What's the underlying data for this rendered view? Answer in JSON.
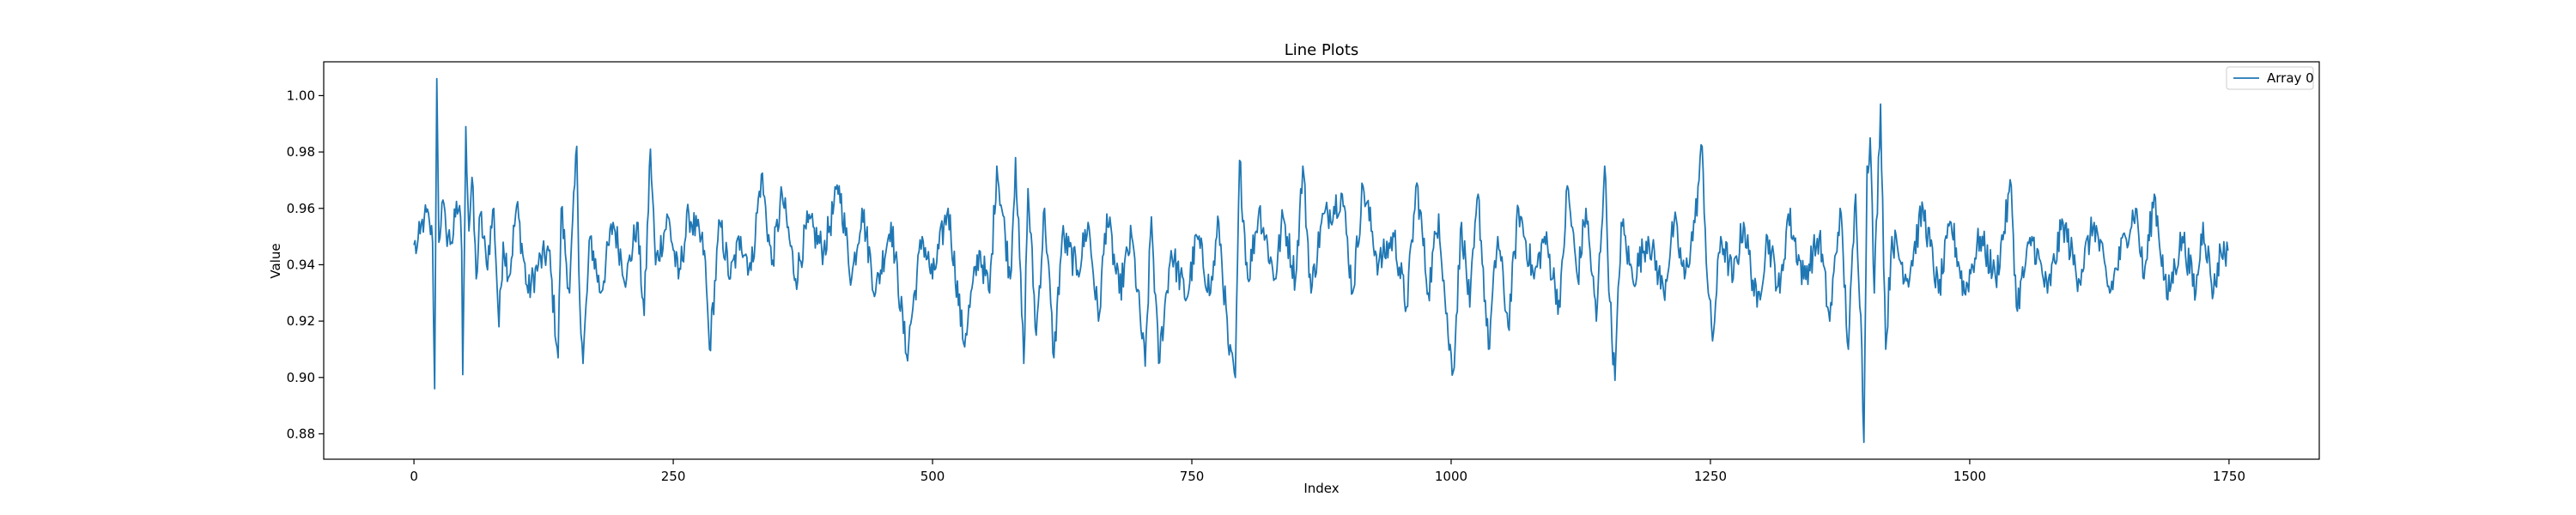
{
  "chart_data": {
    "type": "line",
    "title": "Line Plots",
    "xlabel": "Index",
    "ylabel": "Value",
    "xlim": [
      -87,
      1837
    ],
    "ylim": [
      0.871,
      1.012
    ],
    "xticks": [
      0,
      250,
      500,
      750,
      1000,
      1250,
      1500,
      1750
    ],
    "yticks": [
      0.88,
      0.9,
      0.92,
      0.94,
      0.96,
      0.98,
      1.0
    ],
    "grid": false,
    "legend_position": "top-right",
    "series": [
      {
        "name": "Array 0",
        "color": "#1f77b4",
        "n_points": 1750,
        "anchors": [
          [
            0,
            0.947
          ],
          [
            3,
            0.946
          ],
          [
            6,
            0.951
          ],
          [
            10,
            0.957
          ],
          [
            15,
            0.955
          ],
          [
            18,
            0.948
          ],
          [
            20,
            0.896
          ],
          [
            21,
            0.955
          ],
          [
            22,
            1.006
          ],
          [
            24,
            0.948
          ],
          [
            27,
            0.962
          ],
          [
            31,
            0.952
          ],
          [
            36,
            0.948
          ],
          [
            40,
            0.957
          ],
          [
            44,
            0.961
          ],
          [
            46,
            0.945
          ],
          [
            47,
            0.901
          ],
          [
            48,
            0.929
          ],
          [
            50,
            0.989
          ],
          [
            53,
            0.952
          ],
          [
            56,
            0.971
          ],
          [
            60,
            0.935
          ],
          [
            64,
            0.958
          ],
          [
            70,
            0.94
          ],
          [
            77,
            0.96
          ],
          [
            82,
            0.918
          ],
          [
            86,
            0.948
          ],
          [
            92,
            0.936
          ],
          [
            99,
            0.961
          ],
          [
            110,
            0.93
          ],
          [
            120,
            0.94
          ],
          [
            130,
            0.945
          ],
          [
            139,
            0.907
          ],
          [
            142,
            0.96
          ],
          [
            150,
            0.93
          ],
          [
            157,
            0.982
          ],
          [
            160,
            0.925
          ],
          [
            163,
            0.905
          ],
          [
            170,
            0.95
          ],
          [
            180,
            0.93
          ],
          [
            192,
            0.955
          ],
          [
            205,
            0.935
          ],
          [
            215,
            0.955
          ],
          [
            222,
            0.922
          ],
          [
            228,
            0.981
          ],
          [
            233,
            0.94
          ],
          [
            245,
            0.957
          ],
          [
            255,
            0.935
          ],
          [
            265,
            0.958
          ],
          [
            280,
            0.945
          ],
          [
            285,
            0.91
          ],
          [
            295,
            0.955
          ],
          [
            305,
            0.935
          ],
          [
            315,
            0.95
          ],
          [
            325,
            0.938
          ],
          [
            335,
            0.972
          ],
          [
            345,
            0.94
          ],
          [
            355,
            0.965
          ],
          [
            368,
            0.935
          ],
          [
            380,
            0.955
          ],
          [
            395,
            0.945
          ],
          [
            410,
            0.968
          ],
          [
            422,
            0.935
          ],
          [
            432,
            0.96
          ],
          [
            445,
            0.93
          ],
          [
            460,
            0.955
          ],
          [
            475,
            0.908
          ],
          [
            490,
            0.95
          ],
          [
            500,
            0.935
          ],
          [
            515,
            0.96
          ],
          [
            530,
            0.912
          ],
          [
            545,
            0.945
          ],
          [
            555,
            0.93
          ],
          [
            562,
            0.975
          ],
          [
            575,
            0.935
          ],
          [
            580,
            0.978
          ],
          [
            588,
            0.905
          ],
          [
            592,
            0.967
          ],
          [
            600,
            0.915
          ],
          [
            608,
            0.96
          ],
          [
            617,
            0.907
          ],
          [
            625,
            0.95
          ],
          [
            640,
            0.938
          ],
          [
            650,
            0.955
          ],
          [
            660,
            0.92
          ],
          [
            668,
            0.958
          ],
          [
            680,
            0.93
          ],
          [
            692,
            0.95
          ],
          [
            705,
            0.904
          ],
          [
            711,
            0.957
          ],
          [
            718,
            0.905
          ],
          [
            730,
            0.945
          ],
          [
            745,
            0.928
          ],
          [
            755,
            0.95
          ],
          [
            768,
            0.93
          ],
          [
            776,
            0.955
          ],
          [
            786,
            0.908
          ],
          [
            792,
            0.9
          ],
          [
            796,
            0.977
          ],
          [
            804,
            0.935
          ],
          [
            815,
            0.96
          ],
          [
            830,
            0.935
          ],
          [
            838,
            0.957
          ],
          [
            850,
            0.935
          ],
          [
            857,
            0.975
          ],
          [
            865,
            0.93
          ],
          [
            875,
            0.955
          ],
          [
            895,
            0.965
          ],
          [
            905,
            0.93
          ],
          [
            915,
            0.968
          ],
          [
            930,
            0.94
          ],
          [
            945,
            0.95
          ],
          [
            957,
            0.925
          ],
          [
            967,
            0.969
          ],
          [
            978,
            0.93
          ],
          [
            988,
            0.958
          ],
          [
            997,
            0.915
          ],
          [
            1002,
            0.902
          ],
          [
            1010,
            0.955
          ],
          [
            1018,
            0.925
          ],
          [
            1026,
            0.965
          ],
          [
            1036,
            0.91
          ],
          [
            1045,
            0.95
          ],
          [
            1055,
            0.918
          ],
          [
            1065,
            0.96
          ],
          [
            1080,
            0.935
          ],
          [
            1090,
            0.95
          ],
          [
            1105,
            0.925
          ],
          [
            1112,
            0.968
          ],
          [
            1122,
            0.935
          ],
          [
            1130,
            0.96
          ],
          [
            1140,
            0.92
          ],
          [
            1148,
            0.975
          ],
          [
            1153,
            0.927
          ],
          [
            1158,
            0.899
          ],
          [
            1164,
            0.955
          ],
          [
            1175,
            0.935
          ],
          [
            1190,
            0.95
          ],
          [
            1205,
            0.93
          ],
          [
            1215,
            0.955
          ],
          [
            1225,
            0.935
          ],
          [
            1235,
            0.955
          ],
          [
            1242,
            0.982
          ],
          [
            1247,
            0.935
          ],
          [
            1252,
            0.913
          ],
          [
            1260,
            0.95
          ],
          [
            1272,
            0.935
          ],
          [
            1282,
            0.955
          ],
          [
            1295,
            0.925
          ],
          [
            1305,
            0.95
          ],
          [
            1317,
            0.93
          ],
          [
            1325,
            0.958
          ],
          [
            1340,
            0.935
          ],
          [
            1355,
            0.95
          ],
          [
            1365,
            0.92
          ],
          [
            1375,
            0.96
          ],
          [
            1383,
            0.91
          ],
          [
            1390,
            0.965
          ],
          [
            1395,
            0.922
          ],
          [
            1398,
            0.877
          ],
          [
            1401,
            0.975
          ],
          [
            1404,
            0.985
          ],
          [
            1408,
            0.93
          ],
          [
            1414,
            0.997
          ],
          [
            1419,
            0.91
          ],
          [
            1425,
            0.95
          ],
          [
            1440,
            0.935
          ],
          [
            1455,
            0.96
          ],
          [
            1470,
            0.93
          ],
          [
            1482,
            0.955
          ],
          [
            1495,
            0.93
          ],
          [
            1510,
            0.95
          ],
          [
            1525,
            0.935
          ],
          [
            1540,
            0.968
          ],
          [
            1545,
            0.925
          ],
          [
            1560,
            0.95
          ],
          [
            1575,
            0.93
          ],
          [
            1590,
            0.955
          ],
          [
            1605,
            0.935
          ],
          [
            1620,
            0.955
          ],
          [
            1635,
            0.93
          ],
          [
            1650,
            0.95
          ],
          [
            1660,
            0.96
          ],
          [
            1668,
            0.935
          ],
          [
            1678,
            0.965
          ],
          [
            1690,
            0.928
          ],
          [
            1705,
            0.95
          ],
          [
            1718,
            0.93
          ],
          [
            1725,
            0.955
          ],
          [
            1735,
            0.93
          ],
          [
            1742,
            0.945
          ],
          [
            1749,
            0.945
          ]
        ]
      }
    ]
  }
}
